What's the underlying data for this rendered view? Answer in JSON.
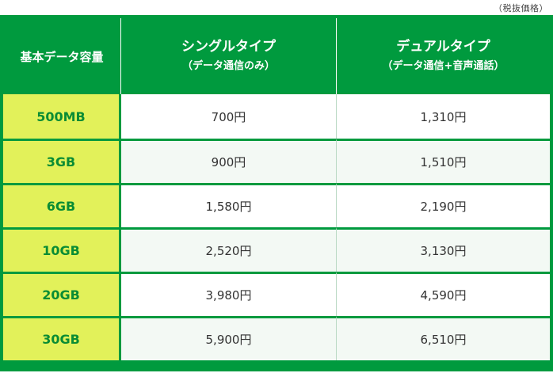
{
  "note": "（税抜価格）",
  "headers": {
    "capacity": "基本データ容量",
    "single_main": "シングルタイプ",
    "single_sub": "（データ通信のみ）",
    "dual_main": "デュアルタイプ",
    "dual_sub": "（データ通信+音声通話）"
  },
  "rows": [
    {
      "capacity": "500MB",
      "single": "700円",
      "dual": "1,310円"
    },
    {
      "capacity": "3GB",
      "single": "900円",
      "dual": "1,510円"
    },
    {
      "capacity": "6GB",
      "single": "1,580円",
      "dual": "2,190円"
    },
    {
      "capacity": "10GB",
      "single": "2,520円",
      "dual": "3,130円"
    },
    {
      "capacity": "20GB",
      "single": "3,980円",
      "dual": "4,590円"
    },
    {
      "capacity": "30GB",
      "single": "5,900円",
      "dual": "6,510円"
    }
  ],
  "colors": {
    "header_bg": "#009a3e",
    "capacity_bg": "#e2f15a",
    "capacity_text": "#0a8c34",
    "row_alt_bg": "#f3f9f4"
  }
}
